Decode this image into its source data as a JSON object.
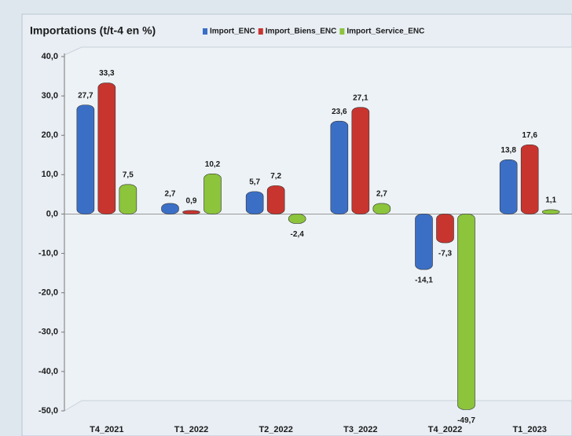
{
  "chart_data": {
    "type": "bar",
    "title": "Importations (t/t-4 en %)",
    "categories": [
      "T4_2021",
      "T1_2022",
      "T2_2022",
      "T3_2022",
      "T4_2022",
      "T1_2023"
    ],
    "series": [
      {
        "name": "Import_ENC",
        "color": "#3b6fc6",
        "values": [
          27.7,
          2.7,
          5.7,
          23.6,
          -14.1,
          13.8
        ],
        "value_labels": [
          "27,7",
          "2,7",
          "5,7",
          "23,6",
          "-14,1",
          "13,8"
        ]
      },
      {
        "name": "Import_Biens_ENC",
        "color": "#c8352f",
        "values": [
          33.3,
          0.9,
          7.2,
          27.1,
          -7.3,
          17.6
        ],
        "value_labels": [
          "33,3",
          "0,9",
          "7,2",
          "27,1",
          "-7,3",
          "17,6"
        ]
      },
      {
        "name": "Import_Service_ENC",
        "color": "#8cc43c",
        "values": [
          7.5,
          10.2,
          -2.4,
          2.7,
          -49.7,
          1.1
        ],
        "value_labels": [
          "7,5",
          "10,2",
          "-2,4",
          "2,7",
          "-49,7",
          "1,1"
        ]
      }
    ],
    "ylim": [
      -50,
      40
    ],
    "yticks": [
      {
        "value": -50,
        "label": "-50,0"
      },
      {
        "value": -40,
        "label": "-40,0"
      },
      {
        "value": -30,
        "label": "-30,0"
      },
      {
        "value": -20,
        "label": "-20,0"
      },
      {
        "value": -10,
        "label": "-10,0"
      },
      {
        "value": 0,
        "label": "0,0"
      },
      {
        "value": 10,
        "label": "10,0"
      },
      {
        "value": 20,
        "label": "20,0"
      },
      {
        "value": 30,
        "label": "30,0"
      },
      {
        "value": 40,
        "label": "40,0"
      }
    ],
    "grid": false,
    "legend": "top"
  }
}
